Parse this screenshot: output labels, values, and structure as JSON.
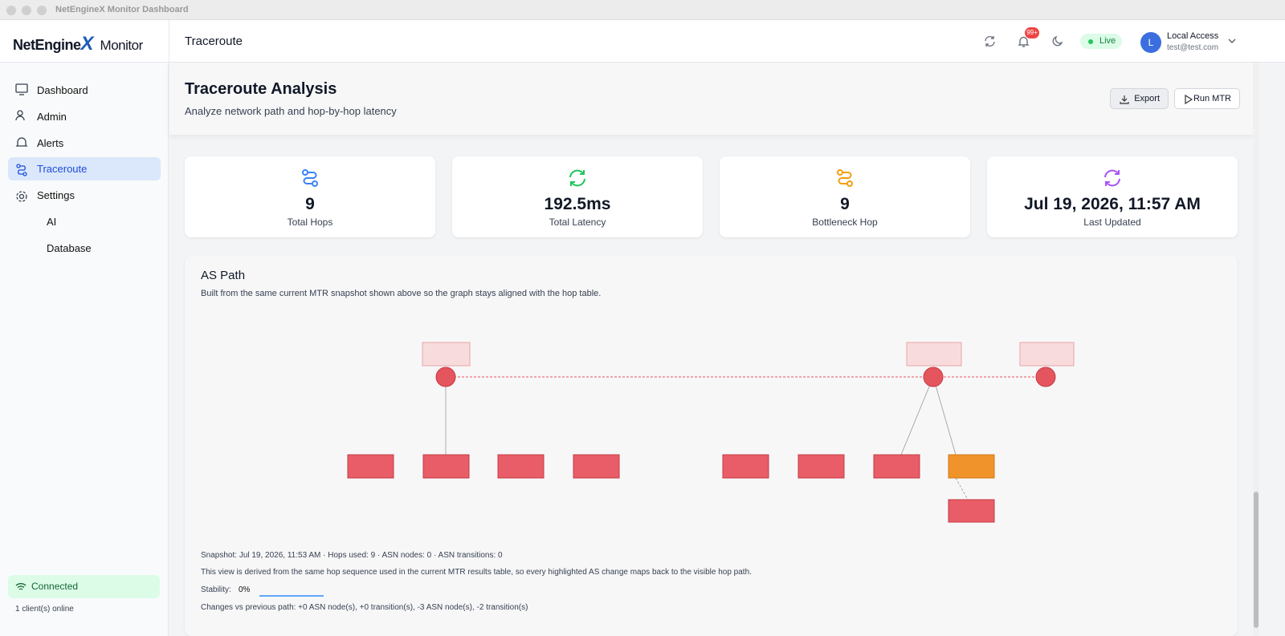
{
  "window": {
    "title": "NetEngineX Monitor Dashboard"
  },
  "header": {
    "logo_main": "NetEngine",
    "logo_x": "X",
    "logo_suffix": "Monitor",
    "page_title": "Traceroute",
    "notification_badge": "99+",
    "status": "Live",
    "user_initial": "L",
    "user_name": "Local Access",
    "user_email": "test@test.com"
  },
  "sidebar": {
    "nav": [
      "Dashboard",
      "Admin",
      "Alerts",
      "Traceroute",
      "Settings"
    ],
    "sub_nav": [
      "AI",
      "Database"
    ],
    "connection": "Connected",
    "clients": "1 client(s) online"
  },
  "page": {
    "title": "Traceroute Analysis",
    "subtitle": "Analyze network path and hop-by-hop latency",
    "buttons": [
      "Export",
      "Run MTR"
    ]
  },
  "stats": [
    {
      "value": "9",
      "label": "Total Hops"
    },
    {
      "value": "192.5ms",
      "label": "Total Latency"
    },
    {
      "value": "9",
      "label": "Bottleneck Hop"
    },
    {
      "value": "Jul 19, 2026, 11:57 AM",
      "label": "Last Updated"
    }
  ],
  "as_path": {
    "title": "AS Path",
    "description": "Built from the same current MTR snapshot shown above so the graph stays aligned with the hop table.",
    "snapshot": "Snapshot: Jul 19, 2026, 11:53 AM · Hops used: 9 · ASN nodes: 0 · ASN transitions: 0",
    "note": "This view is derived from the same hop sequence used in the current MTR results table, so every highlighted AS change maps back to the visible hop path.",
    "stability_label": "Stability:",
    "stability_value": "0%",
    "changes": "Changes vs previous path: +0 ASN node(s), +0 transition(s), -3 ASN node(s), -2 transition(s)"
  }
}
